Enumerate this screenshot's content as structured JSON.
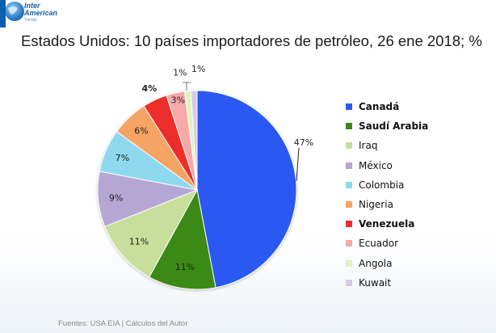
{
  "logo": {
    "line1": "Inter",
    "line2": "American",
    "line3": "Trends"
  },
  "title": "Estados Unidos: 10 países importadores de petróleo, 26 ene 2018; %",
  "footer": "Fuentes: USA EIA | Cálculos del Autor",
  "chart_data": {
    "type": "pie",
    "title": "Estados Unidos: 10 países importadores de petróleo, 26 ene 2018; %",
    "legend_position": "right",
    "slices": [
      {
        "label": "Canadá",
        "value": 47,
        "value_label": "47%",
        "color": "#2b59f0",
        "bold": true
      },
      {
        "label": "Saudí Arabia",
        "value": 11,
        "value_label": "11%",
        "color": "#3b8a13",
        "bold": true
      },
      {
        "label": "Iraq",
        "value": 11,
        "value_label": "11%",
        "color": "#c7df9a",
        "bold": false
      },
      {
        "label": "México",
        "value": 9,
        "value_label": "9%",
        "color": "#b5a6d4",
        "bold": false
      },
      {
        "label": "Colombia",
        "value": 7,
        "value_label": "7%",
        "color": "#8fd9ee",
        "bold": false
      },
      {
        "label": "Nigeria",
        "value": 6,
        "value_label": "6%",
        "color": "#f6a463",
        "bold": false
      },
      {
        "label": "Venezuela",
        "value": 4,
        "value_label": "4%",
        "color": "#ec2f2a",
        "bold": true
      },
      {
        "label": "Ecuador",
        "value": 3,
        "value_label": "3%",
        "color": "#f5a9a9",
        "bold": false
      },
      {
        "label": "Angola",
        "value": 1,
        "value_label": "1%",
        "color": "#e1f2c0",
        "bold": false
      },
      {
        "label": "Kuwait",
        "value": 1,
        "value_label": "1%",
        "color": "#d6cbe9",
        "bold": false
      }
    ]
  }
}
